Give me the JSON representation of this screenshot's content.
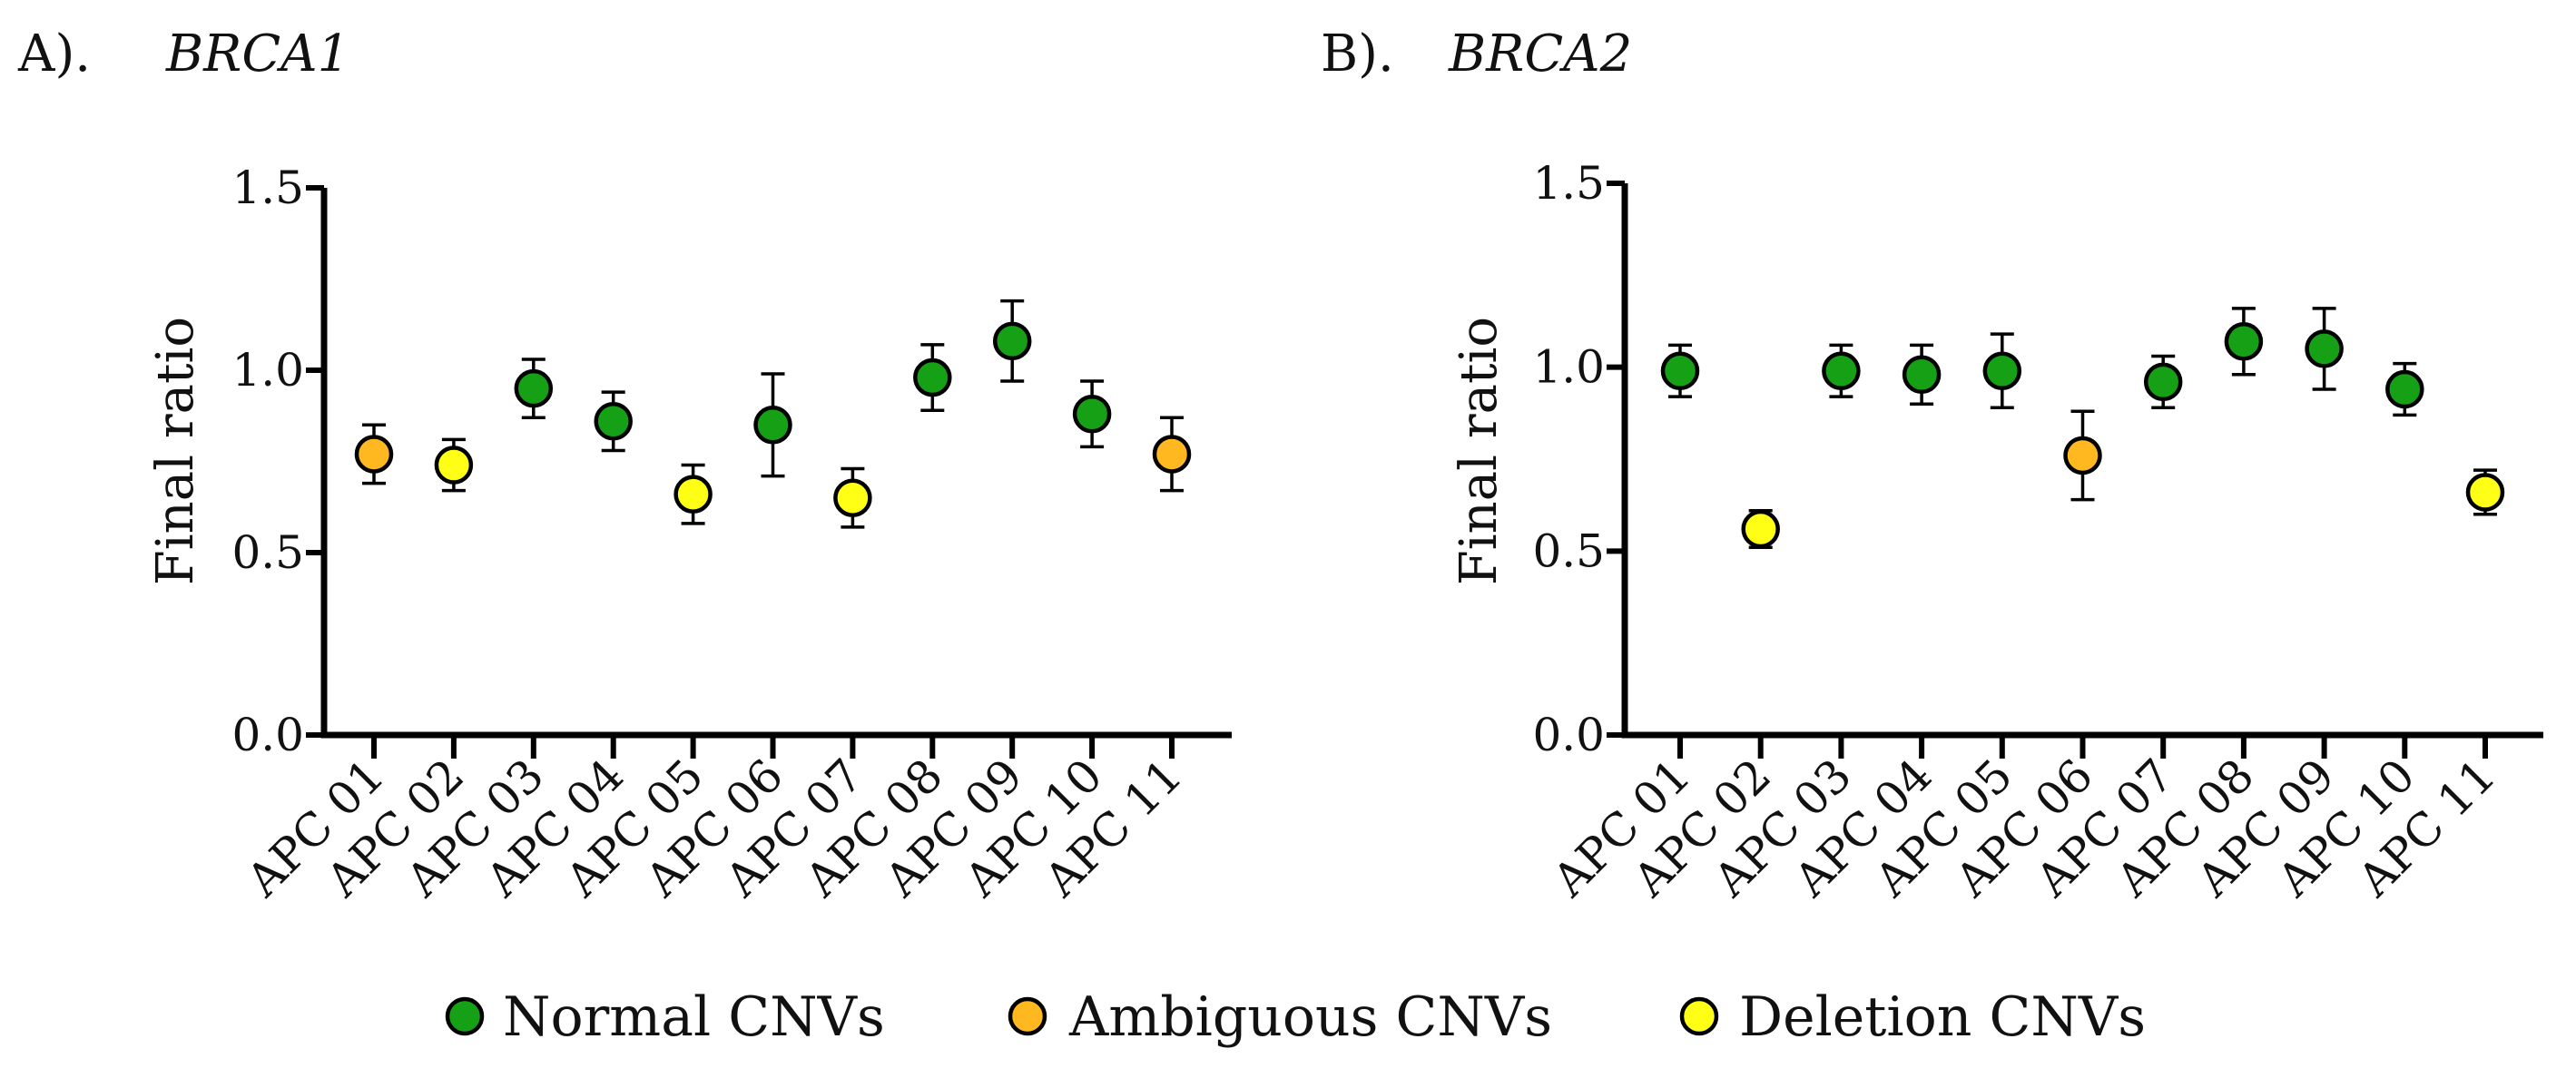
{
  "legend": {
    "items": [
      {
        "label": "Normal CNVs",
        "color": "#16a016",
        "key": "normal"
      },
      {
        "label": "Ambiguous CNVs",
        "color": "#ffb81f",
        "key": "ambiguous"
      },
      {
        "label": "Deletion CNVs",
        "color": "#ffff16",
        "key": "deletion"
      }
    ]
  },
  "chart_data": [
    {
      "type": "scatter",
      "panel_label": "A).",
      "title": "BRCA1",
      "xlabel": "",
      "ylabel": "Final ratio",
      "ylim": [
        0,
        1.5
      ],
      "yticks": [
        "0.0",
        "0.5",
        "1.0",
        "1.5"
      ],
      "ytick_values": [
        0,
        0.5,
        1.0,
        1.5
      ],
      "categories": [
        "APC 01",
        "APC 02",
        "APC 03",
        "APC 04",
        "APC 05",
        "APC 06",
        "APC 07",
        "APC 08",
        "APC 09",
        "APC 10",
        "APC 11"
      ],
      "values": [
        0.77,
        0.74,
        0.95,
        0.86,
        0.66,
        0.85,
        0.65,
        0.98,
        1.08,
        0.88,
        0.77
      ],
      "error": [
        0.08,
        0.07,
        0.08,
        0.08,
        0.08,
        0.14,
        0.08,
        0.09,
        0.11,
        0.09,
        0.1
      ],
      "classes": [
        "ambiguous",
        "deletion",
        "normal",
        "normal",
        "deletion",
        "normal",
        "deletion",
        "normal",
        "normal",
        "normal",
        "ambiguous"
      ],
      "grid": false
    },
    {
      "type": "scatter",
      "panel_label": "B).",
      "title": "BRCA2",
      "xlabel": "",
      "ylabel": "Final ratio",
      "ylim": [
        0,
        1.5
      ],
      "yticks": [
        "0.0",
        "0.5",
        "1.0",
        "1.5"
      ],
      "ytick_values": [
        0,
        0.5,
        1.0,
        1.5
      ],
      "categories": [
        "APC 01",
        "APC 02",
        "APC 03",
        "APC 04",
        "APC 05",
        "APC 06",
        "APC 07",
        "APC 08",
        "APC 09",
        "APC 10",
        "APC 11"
      ],
      "values": [
        0.99,
        0.56,
        0.99,
        0.98,
        0.99,
        0.76,
        0.96,
        1.07,
        1.05,
        0.94,
        0.66
      ],
      "error": [
        0.07,
        0.05,
        0.07,
        0.08,
        0.1,
        0.12,
        0.07,
        0.09,
        0.11,
        0.07,
        0.06
      ],
      "classes": [
        "normal",
        "deletion",
        "normal",
        "normal",
        "normal",
        "ambiguous",
        "normal",
        "normal",
        "normal",
        "normal",
        "deletion"
      ],
      "grid": false
    }
  ]
}
